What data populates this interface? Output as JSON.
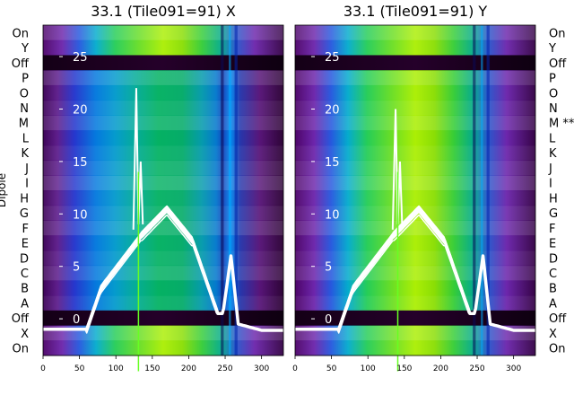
{
  "chart_data": [
    {
      "type": "heatmap",
      "title": "33.1 (Tile091=91) X",
      "xlim": [
        0,
        330
      ],
      "xticks": [
        0,
        50,
        100,
        150,
        200,
        250,
        300
      ],
      "ylabel": "Dipole",
      "row_labels": [
        "On",
        "Y",
        "Off",
        "P",
        "O",
        "N",
        "M",
        "L",
        "K",
        "J",
        "I",
        "H",
        "G",
        "F",
        "E",
        "D",
        "C",
        "B",
        "A",
        "Off",
        "X",
        "On"
      ],
      "overlay_yticks": [
        0,
        5,
        10,
        15,
        20,
        25
      ],
      "overlay_series_count": 4,
      "overlay_color": "#ffffff",
      "colormap": "nipy_spectral",
      "grid": false,
      "legend": "none"
    },
    {
      "type": "heatmap",
      "title": "33.1 (Tile091=91) Y",
      "xlim": [
        0,
        330
      ],
      "xticks": [
        0,
        50,
        100,
        150,
        200,
        250,
        300
      ],
      "right_row_labels": [
        "On",
        "Y",
        "Off",
        "P",
        "O",
        "N",
        "M **",
        "L",
        "K",
        "J",
        "I",
        "H",
        "G",
        "F",
        "E",
        "D",
        "C",
        "B",
        "A",
        "Off",
        "X",
        "On"
      ],
      "overlay_yticks": [
        0,
        5,
        10,
        15,
        20,
        25
      ],
      "overlay_series_count": 4,
      "overlay_color": "#ffffff",
      "colormap": "nipy_spectral",
      "grid": false,
      "legend": "none"
    }
  ]
}
